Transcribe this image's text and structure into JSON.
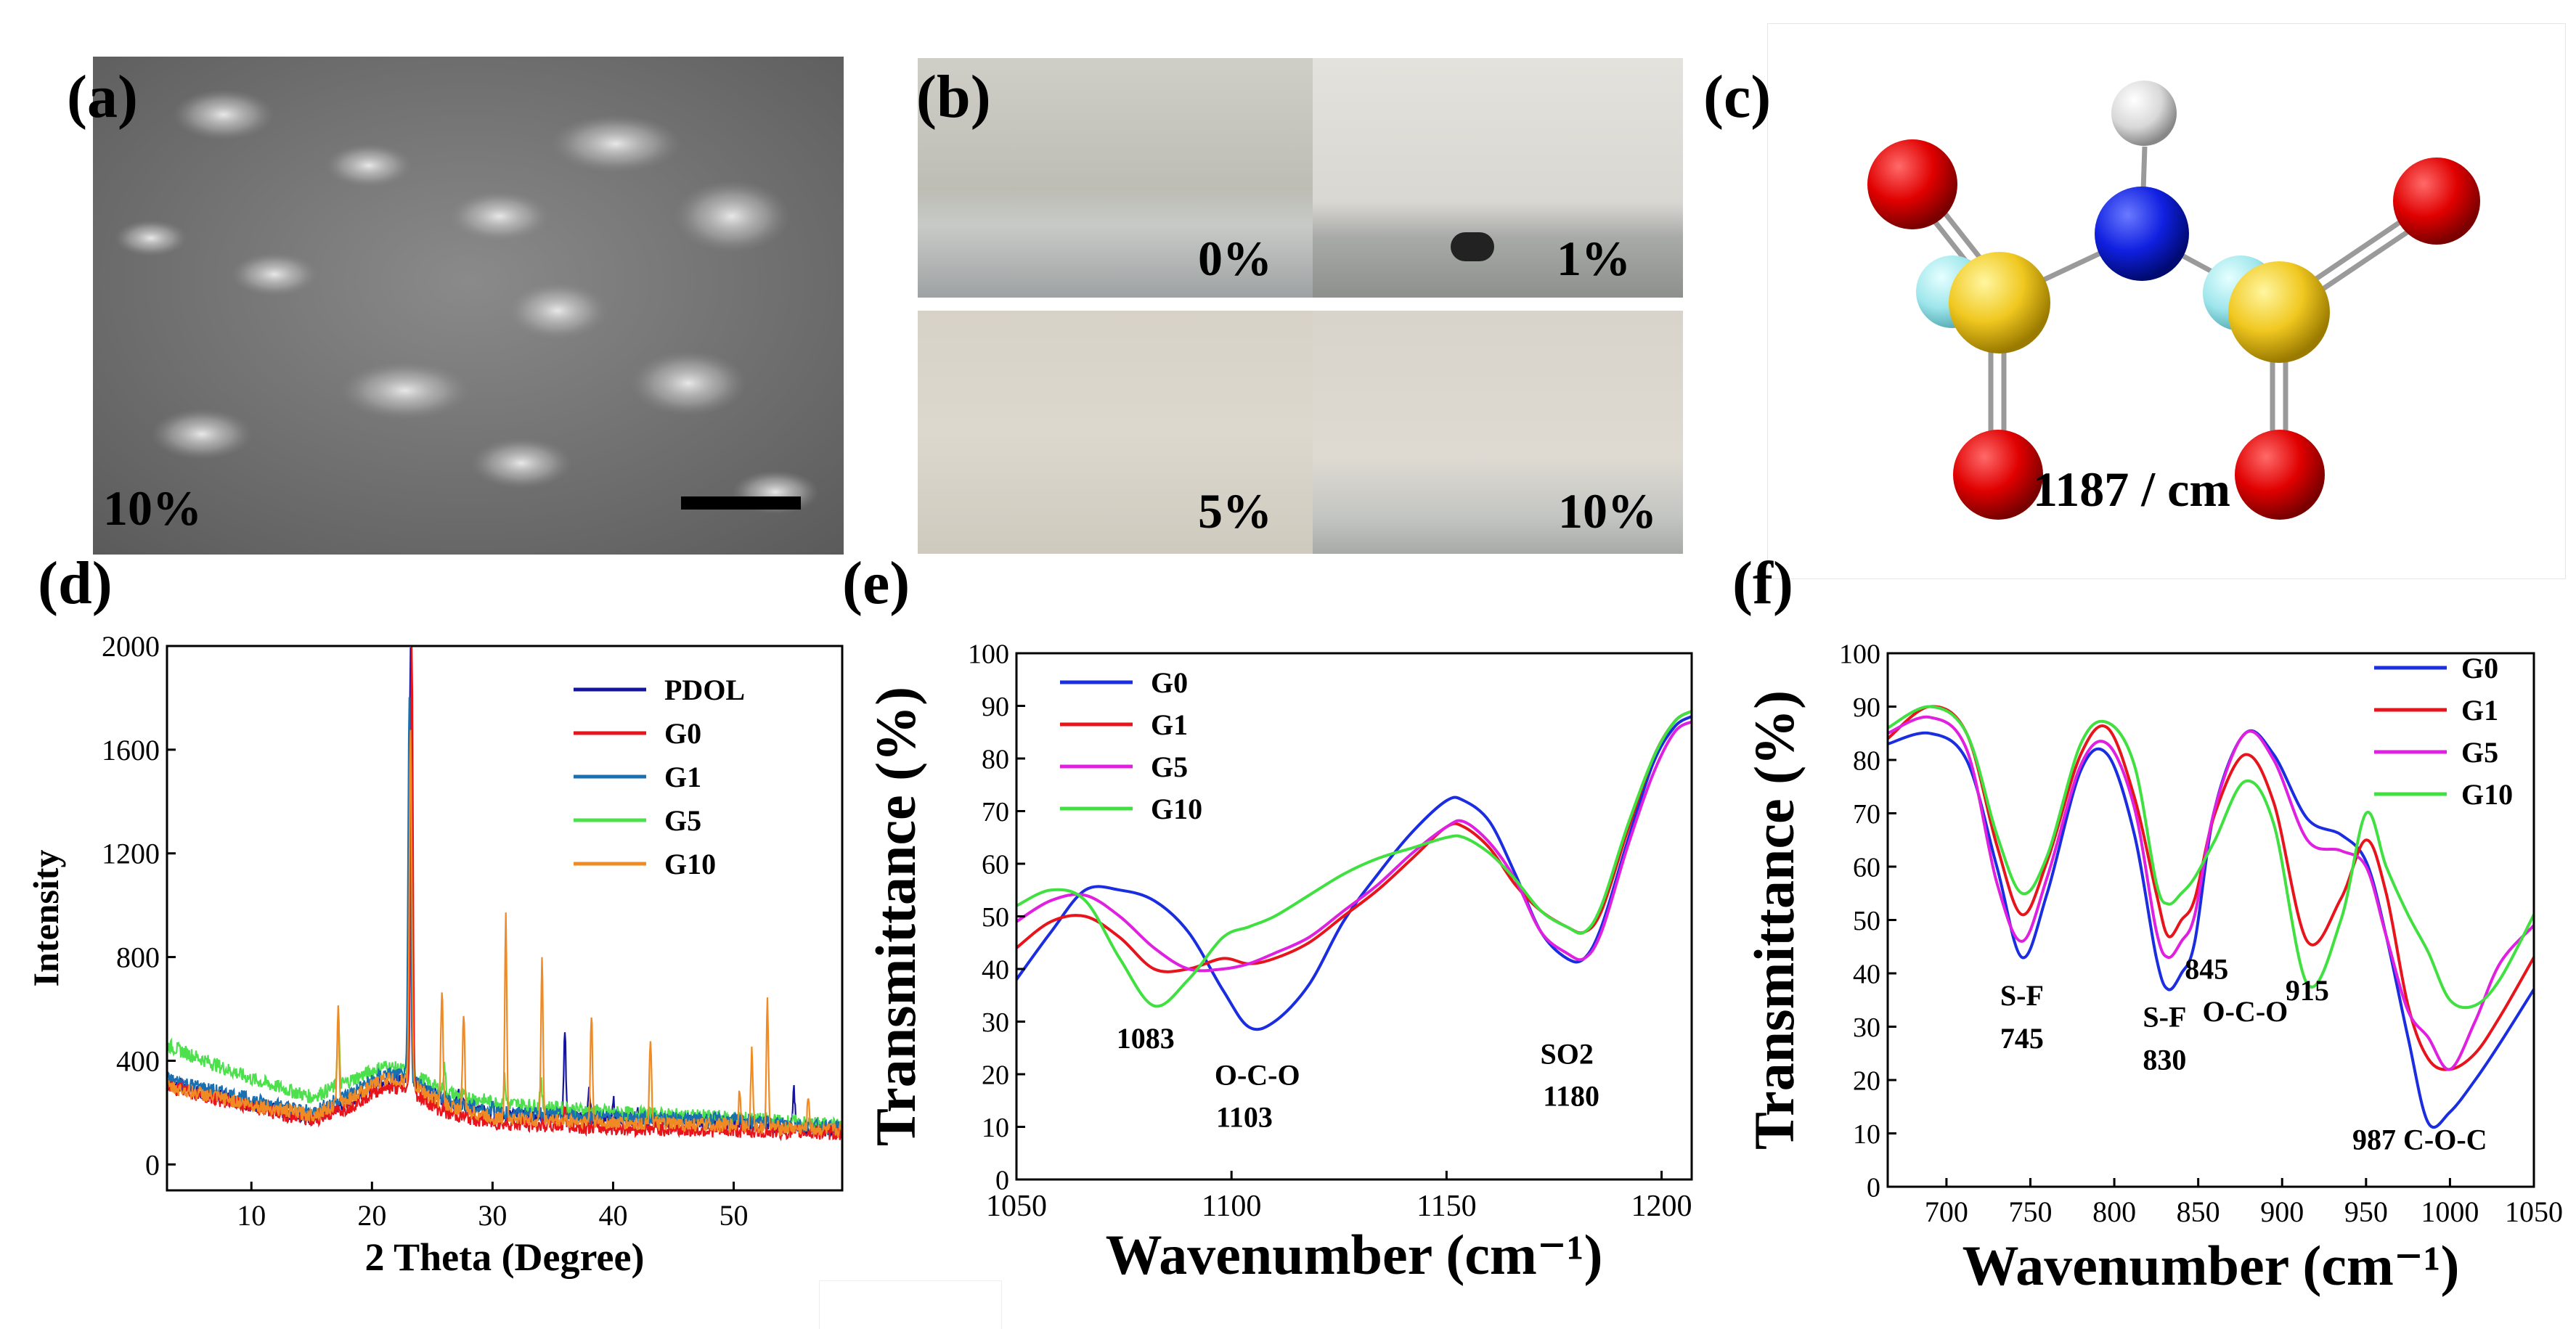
{
  "panels": {
    "a": {
      "label": "(a)",
      "concentration": "10%"
    },
    "b": {
      "label": "(b)",
      "vials": [
        "0%",
        "1%",
        "5%",
        "10%"
      ]
    },
    "c": {
      "label": "(c)",
      "frequency": "1187 / cm"
    },
    "d": {
      "label": "(d)"
    },
    "e": {
      "label": "(e)"
    },
    "f": {
      "label": "(f)"
    }
  },
  "colors": {
    "PDOL": "#1414a0",
    "G0": "#e8141c",
    "G1": "#1a6fb0",
    "G5": "#4de04d",
    "G10": "#f08a24",
    "blue": "#1a2de0",
    "magenta": "#e020e0",
    "green": "#40e040"
  },
  "molecule": {
    "atoms": [
      "O",
      "S",
      "F",
      "N",
      "H",
      "S",
      "F",
      "O",
      "O",
      "O"
    ]
  },
  "chart_data": [
    {
      "id": "d",
      "type": "line",
      "title": "",
      "xlabel": "2 Theta (Degree)",
      "ylabel": "Intensity",
      "xlim": [
        3,
        59
      ],
      "ylim": [
        -100,
        2000
      ],
      "xticks": [
        10,
        20,
        30,
        40,
        50
      ],
      "yticks": [
        0,
        400,
        800,
        1200,
        1600,
        2000
      ],
      "ytick_labels": [
        "0",
        "400",
        "800",
        "1200",
        "1600",
        "2000"
      ],
      "legend": [
        "PDOL",
        "G0",
        "G1",
        "G5",
        "G10"
      ],
      "legend_position": "top-right",
      "series": [
        {
          "name": "PDOL",
          "baseline": [
            [
              3,
              320
            ],
            [
              10,
              230
            ],
            [
              15,
              180
            ],
            [
              18,
              240
            ],
            [
              21,
              330
            ],
            [
              23,
              330
            ],
            [
              26,
              250
            ],
            [
              30,
              190
            ],
            [
              40,
              180
            ],
            [
              50,
              160
            ],
            [
              59,
              130
            ]
          ],
          "peaks": [
            [
              23.2,
              2000
            ],
            [
              27.2,
              280
            ],
            [
              30,
              250
            ],
            [
              36,
              500
            ],
            [
              38,
              300
            ],
            [
              40,
              250
            ],
            [
              42,
              200
            ],
            [
              45,
              180
            ],
            [
              48,
              160
            ],
            [
              50,
              170
            ],
            [
              55,
              290
            ]
          ]
        },
        {
          "name": "G0",
          "baseline": [
            [
              3,
              300
            ],
            [
              10,
              220
            ],
            [
              15,
              170
            ],
            [
              18,
              220
            ],
            [
              21,
              300
            ],
            [
              23,
              290
            ],
            [
              26,
              200
            ],
            [
              30,
              160
            ],
            [
              40,
              140
            ],
            [
              50,
              130
            ],
            [
              59,
              120
            ]
          ],
          "peaks": [
            [
              23.3,
              2000
            ],
            [
              26,
              220
            ],
            [
              36,
              230
            ],
            [
              45,
              140
            ]
          ]
        },
        {
          "name": "G1",
          "baseline": [
            [
              3,
              330
            ],
            [
              10,
              250
            ],
            [
              15,
              200
            ],
            [
              18,
              270
            ],
            [
              21,
              350
            ],
            [
              23,
              340
            ],
            [
              26,
              250
            ],
            [
              30,
              200
            ],
            [
              40,
              180
            ],
            [
              50,
              170
            ],
            [
              59,
              140
            ]
          ],
          "peaks": [
            [
              23.1,
              1800
            ],
            [
              26,
              260
            ],
            [
              30,
              250
            ],
            [
              34,
              200
            ]
          ]
        },
        {
          "name": "G5",
          "baseline": [
            [
              3,
              460
            ],
            [
              10,
              330
            ],
            [
              15,
              260
            ],
            [
              18,
              320
            ],
            [
              21,
              380
            ],
            [
              23,
              360
            ],
            [
              26,
              280
            ],
            [
              30,
              240
            ],
            [
              40,
              200
            ],
            [
              50,
              180
            ],
            [
              59,
              150
            ]
          ],
          "peaks": [
            [
              17.2,
              580
            ],
            [
              23.2,
              1500
            ],
            [
              26,
              380
            ],
            [
              31,
              330
            ],
            [
              34,
              320
            ]
          ]
        },
        {
          "name": "G10",
          "baseline": [
            [
              3,
              300
            ],
            [
              10,
              230
            ],
            [
              15,
              190
            ],
            [
              18,
              250
            ],
            [
              21,
              330
            ],
            [
              23,
              320
            ],
            [
              26,
              230
            ],
            [
              30,
              180
            ],
            [
              40,
              160
            ],
            [
              50,
              150
            ],
            [
              59,
              130
            ]
          ],
          "peaks": [
            [
              17.2,
              590
            ],
            [
              23.2,
              1700
            ],
            [
              25.8,
              680
            ],
            [
              27.6,
              590
            ],
            [
              31.1,
              950
            ],
            [
              34.1,
              800
            ],
            [
              38.2,
              580
            ],
            [
              43.1,
              500
            ],
            [
              50.5,
              300
            ],
            [
              51.5,
              430
            ],
            [
              52.8,
              620
            ],
            [
              56.2,
              260
            ]
          ]
        }
      ]
    },
    {
      "id": "e",
      "type": "line",
      "title": "",
      "xlabel": "Wavenumber (cm⁻¹)",
      "ylabel": "Transmittance (%)",
      "xlim": [
        1050,
        1207
      ],
      "ylim": [
        0,
        100
      ],
      "xticks": [
        1050,
        1100,
        1150,
        1200
      ],
      "yticks": [
        0,
        10,
        20,
        30,
        40,
        50,
        60,
        70,
        80,
        90,
        100
      ],
      "legend": [
        "G0",
        "G1",
        "G5",
        "G10"
      ],
      "legend_position": "top-left",
      "annotations": [
        "1083",
        "O-C-O",
        "1103",
        "SO2",
        "1180"
      ],
      "series": [
        {
          "name": "G0",
          "x": [
            1050,
            1058,
            1066,
            1074,
            1082,
            1090,
            1098,
            1104,
            1110,
            1118,
            1126,
            1134,
            1142,
            1150,
            1154,
            1160,
            1166,
            1172,
            1178,
            1182,
            1186,
            1192,
            1198,
            1203,
            1207
          ],
          "y": [
            38,
            47,
            55,
            55,
            53,
            47,
            36,
            29,
            30,
            37,
            49,
            58,
            66,
            72,
            72,
            68,
            58,
            47,
            42,
            42,
            48,
            64,
            79,
            86,
            88
          ]
        },
        {
          "name": "G1",
          "x": [
            1050,
            1058,
            1066,
            1074,
            1082,
            1090,
            1098,
            1104,
            1110,
            1118,
            1126,
            1134,
            1142,
            1150,
            1154,
            1160,
            1166,
            1172,
            1178,
            1182,
            1186,
            1192,
            1198,
            1203,
            1207
          ],
          "y": [
            44,
            49,
            50,
            46,
            40,
            40,
            42,
            41,
            42,
            45,
            50,
            55,
            61,
            67,
            67,
            63,
            56,
            51,
            48,
            47,
            51,
            66,
            80,
            87,
            89
          ]
        },
        {
          "name": "G5",
          "x": [
            1050,
            1058,
            1066,
            1074,
            1082,
            1090,
            1098,
            1104,
            1110,
            1118,
            1126,
            1134,
            1142,
            1150,
            1154,
            1160,
            1166,
            1172,
            1178,
            1182,
            1186,
            1192,
            1198,
            1203,
            1207
          ],
          "y": [
            49,
            53,
            54,
            50,
            44,
            40,
            40,
            41,
            43,
            46,
            51,
            56,
            62,
            67,
            68,
            64,
            57,
            47,
            43,
            42,
            47,
            63,
            77,
            85,
            87
          ]
        },
        {
          "name": "G10",
          "x": [
            1050,
            1058,
            1066,
            1074,
            1082,
            1090,
            1098,
            1104,
            1110,
            1118,
            1126,
            1134,
            1142,
            1150,
            1154,
            1160,
            1166,
            1172,
            1178,
            1182,
            1186,
            1192,
            1198,
            1203,
            1207
          ],
          "y": [
            52,
            55,
            53,
            42,
            33,
            38,
            46,
            48,
            50,
            54,
            58,
            61,
            63,
            65,
            65,
            62,
            57,
            51,
            48,
            47,
            52,
            67,
            80,
            87,
            89
          ]
        }
      ]
    },
    {
      "id": "f",
      "type": "line",
      "title": "",
      "xlabel": "Wavenumber (cm⁻¹)",
      "ylabel": "Transmittance (%)",
      "xlim": [
        665,
        1050
      ],
      "ylim": [
        0,
        100
      ],
      "xticks": [
        700,
        750,
        800,
        850,
        900,
        950,
        1000,
        1050
      ],
      "yticks": [
        0,
        10,
        20,
        30,
        40,
        50,
        60,
        70,
        80,
        90,
        100
      ],
      "legend": [
        "G0",
        "G1",
        "G5",
        "G10"
      ],
      "legend_position": "top-right",
      "annotations": [
        "S-F",
        "745",
        "S-F",
        "830",
        "845",
        "O-C-O",
        "915",
        "987 C-O-C"
      ],
      "series": [
        {
          "name": "G0",
          "x": [
            665,
            690,
            712,
            730,
            745,
            760,
            780,
            796,
            812,
            825,
            832,
            840,
            848,
            860,
            878,
            895,
            915,
            935,
            950,
            962,
            975,
            987,
            1000,
            1015,
            1030,
            1050
          ],
          "y": [
            83,
            85,
            80,
            60,
            43,
            55,
            78,
            81,
            66,
            43,
            37,
            40,
            46,
            71,
            85,
            81,
            69,
            66,
            61,
            47,
            28,
            12,
            14,
            20,
            27,
            37
          ]
        },
        {
          "name": "G1",
          "x": [
            665,
            690,
            712,
            730,
            745,
            760,
            780,
            796,
            812,
            825,
            832,
            840,
            848,
            860,
            878,
            895,
            915,
            935,
            950,
            962,
            975,
            987,
            1000,
            1015,
            1030,
            1050
          ],
          "y": [
            84,
            90,
            85,
            64,
            51,
            61,
            81,
            86,
            73,
            55,
            47,
            50,
            54,
            70,
            81,
            72,
            46,
            54,
            65,
            55,
            34,
            24,
            22,
            25,
            32,
            43
          ]
        },
        {
          "name": "G5",
          "x": [
            665,
            690,
            712,
            730,
            745,
            760,
            780,
            796,
            812,
            825,
            832,
            840,
            848,
            860,
            878,
            895,
            915,
            935,
            950,
            962,
            975,
            987,
            1000,
            1015,
            1030,
            1050
          ],
          "y": [
            85,
            88,
            82,
            57,
            46,
            58,
            79,
            83,
            71,
            48,
            43,
            46,
            51,
            71,
            85,
            80,
            65,
            63,
            60,
            47,
            33,
            28,
            22,
            31,
            42,
            49
          ]
        },
        {
          "name": "G10",
          "x": [
            665,
            690,
            712,
            730,
            745,
            760,
            780,
            796,
            812,
            825,
            832,
            840,
            848,
            860,
            878,
            895,
            915,
            935,
            950,
            962,
            975,
            987,
            1000,
            1015,
            1030,
            1050
          ],
          "y": [
            86,
            90,
            85,
            66,
            55,
            62,
            83,
            87,
            79,
            57,
            53,
            55,
            58,
            65,
            76,
            68,
            38,
            50,
            70,
            60,
            51,
            44,
            35,
            34,
            39,
            51
          ]
        }
      ]
    }
  ]
}
